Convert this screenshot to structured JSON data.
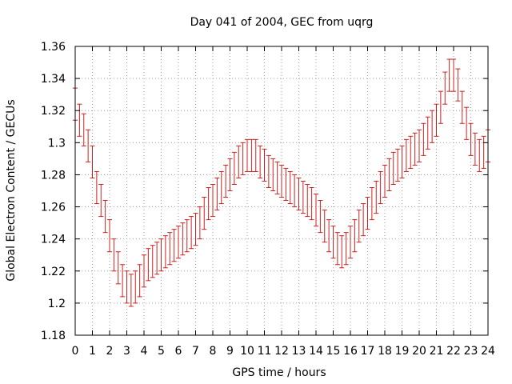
{
  "chart_data": {
    "type": "errorbar",
    "title": "Day 041 of 2004, GEC from uqrg",
    "xlabel": "GPS time / hours",
    "ylabel": "Global Electron Content / GECUs",
    "xlim": [
      0,
      24
    ],
    "ylim": [
      1.18,
      1.36
    ],
    "xticks": [
      0,
      1,
      2,
      3,
      4,
      5,
      6,
      7,
      8,
      9,
      10,
      11,
      12,
      13,
      14,
      15,
      16,
      17,
      18,
      19,
      20,
      21,
      22,
      23,
      24
    ],
    "yticks": [
      1.18,
      1.2,
      1.22,
      1.24,
      1.26,
      1.28,
      1.3,
      1.32,
      1.34,
      1.36
    ],
    "ytick_labels": [
      "1.18",
      "1.2",
      "1.22",
      "1.24",
      "1.26",
      "1.28",
      "1.3",
      "1.32",
      "1.34",
      "1.36"
    ],
    "grid": true,
    "series_color": "#cc2020",
    "series": [
      {
        "name": "GEC",
        "x": [
          0,
          0.25,
          0.5,
          0.75,
          1,
          1.25,
          1.5,
          1.75,
          2,
          2.25,
          2.5,
          2.75,
          3,
          3.25,
          3.5,
          3.75,
          4,
          4.25,
          4.5,
          4.75,
          5,
          5.25,
          5.5,
          5.75,
          6,
          6.25,
          6.5,
          6.75,
          7,
          7.25,
          7.5,
          7.75,
          8,
          8.25,
          8.5,
          8.75,
          9,
          9.25,
          9.5,
          9.75,
          10,
          10.25,
          10.5,
          10.75,
          11,
          11.25,
          11.5,
          11.75,
          12,
          12.25,
          12.5,
          12.75,
          13,
          13.25,
          13.5,
          13.75,
          14,
          14.25,
          14.5,
          14.75,
          15,
          15.25,
          15.5,
          15.75,
          16,
          16.25,
          16.5,
          16.75,
          17,
          17.25,
          17.5,
          17.75,
          18,
          18.25,
          18.5,
          18.75,
          19,
          19.25,
          19.5,
          19.75,
          20,
          20.25,
          20.5,
          20.75,
          21,
          21.25,
          21.5,
          21.75,
          22,
          22.25,
          22.5,
          22.75,
          23,
          23.25,
          23.5,
          23.75,
          24
        ],
        "y": [
          1.324,
          1.314,
          1.308,
          1.298,
          1.288,
          1.272,
          1.264,
          1.254,
          1.242,
          1.23,
          1.222,
          1.214,
          1.21,
          1.208,
          1.21,
          1.214,
          1.22,
          1.224,
          1.226,
          1.228,
          1.23,
          1.232,
          1.234,
          1.236,
          1.238,
          1.24,
          1.242,
          1.244,
          1.246,
          1.25,
          1.256,
          1.262,
          1.264,
          1.268,
          1.272,
          1.276,
          1.28,
          1.284,
          1.288,
          1.29,
          1.292,
          1.292,
          1.292,
          1.288,
          1.286,
          1.282,
          1.28,
          1.278,
          1.276,
          1.274,
          1.272,
          1.27,
          1.268,
          1.266,
          1.264,
          1.262,
          1.258,
          1.254,
          1.248,
          1.242,
          1.238,
          1.234,
          1.232,
          1.234,
          1.238,
          1.242,
          1.248,
          1.252,
          1.256,
          1.262,
          1.266,
          1.272,
          1.276,
          1.28,
          1.284,
          1.286,
          1.288,
          1.292,
          1.294,
          1.296,
          1.298,
          1.302,
          1.306,
          1.31,
          1.314,
          1.322,
          1.334,
          1.342,
          1.342,
          1.336,
          1.322,
          1.312,
          1.302,
          1.296,
          1.292,
          1.294,
          1.298
        ],
        "error": 0.01
      }
    ]
  }
}
